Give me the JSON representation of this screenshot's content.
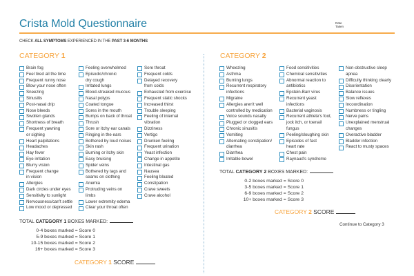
{
  "header": {
    "title": "Crista Mold Questionnaire",
    "date_label": "Date Taken",
    "instruction_parts": [
      "CHECK ",
      "ALL SYMPTOMS",
      " EXPERIENCED IN THE ",
      "PAST 3-6 MONTHS"
    ]
  },
  "colors": {
    "title": "#1f7ea5",
    "accent": "#f7a33b",
    "checkbox": "#2f8fc0"
  },
  "category1": {
    "heading": "CATEGORY ",
    "number": "1",
    "columns": [
      [
        "Brain fog",
        "Feel tired all the time",
        "Frequent runny nose",
        "Blow your nose often",
        "Sneezing",
        "Sinusitis",
        "Post-nasal drip",
        "Nose bleeds",
        "Swollen glands",
        "Shortness of breath",
        "Frequent yawning\nor sighing",
        "Heart palpitations",
        "Headaches",
        "Hay fever",
        "Eye irritation",
        "Blurry vision",
        "Frequent change\nin vision",
        "Allergies",
        "Dark circles under eyes",
        "Sensitivity to sunlight",
        "Nervousness/can't settle",
        "Low mood or depressed"
      ],
      [
        "Feeling overwhelmed",
        "Episodic/chronic\ndry cough",
        "Irritated lungs",
        "Blood-streaked mucous",
        "Nasal polyps",
        "Coated tongue",
        "Sores in the mouth",
        "Bumps on back of throat",
        "Thrush",
        "Sore or itchy ear canals",
        "Ringing in the ears",
        "Bothered by loud noises",
        "Skin rash",
        "Burning or itchy skin",
        "Easy bruising",
        "Spider veins",
        "Bothered by tags and\nseams on clothing",
        "Anemia",
        "Protruding veins on\nlimbs",
        "Lower extremity edema",
        "Clear your throat often"
      ],
      [
        "Sore throat",
        "Frequent colds",
        "Delayed recovery\nfrom colds",
        "Exhausted from exercise",
        "Frequent static shocks",
        "Increased thirst",
        "Trouble sleeping",
        "Feeling of internal\nvibration",
        "Dizziness",
        "Vertigo",
        "Drunken feeling",
        "Frequent urination",
        "Yeast infection",
        "Change in appetite",
        "Intestinal gas",
        "Nausea",
        "Feeling bloated",
        "Constipation",
        "Crave sweets",
        "Crave alcohol"
      ]
    ],
    "total_parts": [
      "TOTAL ",
      "CATEGORY 1",
      " BOXES MARKED:"
    ],
    "score_table": [
      "0-4 boxes marked  = Score 0",
      "5-9 boxes marked  = Score 1",
      "10-15 boxes marked  = Score 2",
      "16+ boxes marked  = Score 3"
    ],
    "score_parts": [
      "CATEGORY ",
      "1",
      " SCORE"
    ]
  },
  "category2": {
    "heading": "CATEGORY ",
    "number": "2",
    "columns": [
      [
        "Wheezing",
        "Asthma",
        "Burning lungs",
        "Recurrent respiratory\ninfections",
        "Migraine",
        "Allergies aren't well\ncontrolled by medication",
        "Voice sounds nasally",
        "Plugged or clogged ears",
        "Chronic sinusitis",
        "Vomiting",
        "Alternating constipation/\ndiarrhea",
        "Diarrhea",
        "Irritable bowel"
      ],
      [
        "Food sensitivities",
        "Chemical sensitivities",
        "Abnormal reaction to\nantibiotics",
        "Epstein-Barr virus",
        "Recurrent yeast\ninfections",
        "Bacterial vaginosis",
        "Recurrent athlete's foot,\njock itch, or toenail\nfungus",
        "Peeling/sloughing skin",
        "Episodes of fast\nheart rate",
        "Chest pain",
        "Raynaud's syndrome"
      ],
      [
        "Non-obstructive sleep\napnea",
        "Difficulty thinking clearly",
        "Disorientation",
        "Balance issues",
        "Slow reflexes",
        "Incoordination",
        "Numbness or tingling",
        "Nerve pains",
        "Unexplained menstrual\nchanges",
        "Overactive bladder",
        "Bladder infection",
        "React to musty spaces"
      ]
    ],
    "total_parts": [
      "TOTAL ",
      "CATEGORY 2",
      " BOXES MARKED:"
    ],
    "score_table": [
      "0-2 boxes marked  = Score 0",
      "3-5 boxes marked  = Score 1",
      "6-9 boxes marked  = Score 2",
      "10+ boxes marked  = Score 3"
    ],
    "score_parts": [
      "CATEGORY ",
      "2",
      " SCORE"
    ],
    "continue": "Continue to Category 3"
  }
}
